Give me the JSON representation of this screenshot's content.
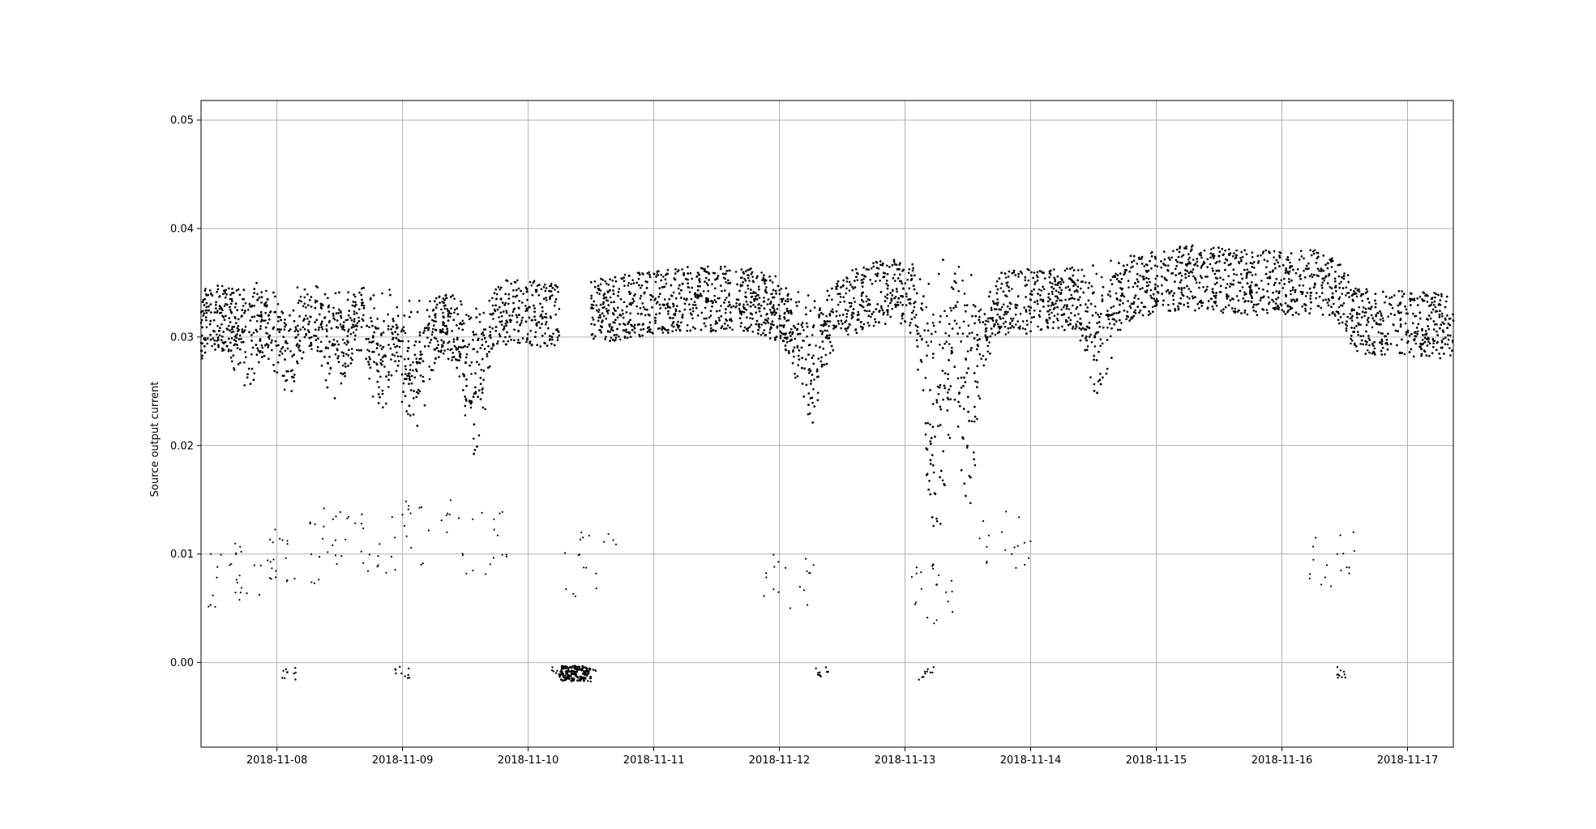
{
  "chart_data": {
    "type": "scatter",
    "title": "",
    "xlabel": "",
    "ylabel": "Source output current",
    "x_axis": {
      "kind": "date",
      "range": [
        "2018-11-07T09:30",
        "2018-11-17T08:45"
      ],
      "tick_labels": [
        "2018-11-08",
        "2018-11-09",
        "2018-11-10",
        "2018-11-11",
        "2018-11-12",
        "2018-11-13",
        "2018-11-14",
        "2018-11-15",
        "2018-11-16",
        "2018-11-17"
      ]
    },
    "y_axis": {
      "range": [
        -0.0078,
        0.0518
      ],
      "ticks": [
        0.0,
        0.01,
        0.02,
        0.03,
        0.04,
        0.05
      ],
      "tick_labels": [
        "0.00",
        "0.01",
        "0.02",
        "0.03",
        "0.04",
        "0.05"
      ]
    },
    "grid": true,
    "legend": "none",
    "marker_color": "#000000",
    "series": [
      {
        "description_points": "approximate envelope of the dense band (date, value)",
        "band": [
          [
            "2018-11-07T10:00",
            0.0315
          ],
          [
            "2018-11-07T18:00",
            0.0325
          ],
          [
            "2018-11-08T02:00",
            0.032
          ],
          [
            "2018-11-08T12:00",
            0.032
          ],
          [
            "2018-11-08T22:00",
            0.0315
          ],
          [
            "2018-11-09T12:00",
            0.031
          ],
          [
            "2018-11-09T18:00",
            0.0325
          ],
          [
            "2018-11-10T05:00",
            0.032
          ],
          [
            "2018-11-10T14:00",
            0.0325
          ],
          [
            "2018-11-11T06:00",
            0.0335
          ],
          [
            "2018-11-11T18:00",
            0.0335
          ],
          [
            "2018-11-12T06:00",
            0.0315
          ],
          [
            "2018-11-12T18:00",
            0.034
          ],
          [
            "2018-11-13T06:00",
            0.0345
          ],
          [
            "2018-11-13T16:00",
            0.033
          ],
          [
            "2018-11-14T06:00",
            0.0335
          ],
          [
            "2018-11-14T18:00",
            0.0345
          ],
          [
            "2018-11-15T06:00",
            0.0355
          ],
          [
            "2018-11-15T18:00",
            0.035
          ],
          [
            "2018-11-16T06:00",
            0.035
          ],
          [
            "2018-11-16T10:00",
            0.035
          ],
          [
            "2018-11-16T14:00",
            0.0315
          ],
          [
            "2018-11-17T08:00",
            0.031
          ]
        ],
        "dips": [
          [
            "2018-11-07T18:00",
            0.0275
          ],
          [
            "2018-11-08T02:00",
            0.026
          ],
          [
            "2018-11-08T11:00",
            0.0265
          ],
          [
            "2018-11-08T20:00",
            0.0255
          ],
          [
            "2018-11-09T02:00",
            0.023
          ],
          [
            "2018-11-09T14:00",
            0.0215
          ],
          [
            "2018-11-12T06:00",
            0.0245
          ],
          [
            "2018-11-13T06:00",
            0.009
          ],
          [
            "2018-11-13T12:00",
            0.017
          ],
          [
            "2018-11-14T13:00",
            0.0265
          ]
        ],
        "scattered_low": [
          [
            "2018-11-07T12:00",
            0.008
          ],
          [
            "2018-11-07T20:00",
            0.009
          ],
          [
            "2018-11-08T03:00",
            0.01
          ],
          [
            "2018-11-08T10:00",
            0.0115
          ],
          [
            "2018-11-08T19:00",
            0.011
          ],
          [
            "2018-11-09T05:00",
            0.012
          ],
          [
            "2018-11-09T15:00",
            0.011
          ],
          [
            "2018-11-10T12:00",
            0.009
          ],
          [
            "2018-11-12T02:00",
            0.007
          ],
          [
            "2018-11-13T06:00",
            0.006
          ],
          [
            "2018-11-13T19:00",
            0.011
          ],
          [
            "2018-11-16T10:00",
            0.01
          ]
        ],
        "near_zero": [
          [
            "2018-11-08T02:30",
            -0.001
          ],
          [
            "2018-11-09T00:00",
            -0.001
          ],
          [
            "2018-11-10T06:00",
            -0.001
          ],
          [
            "2018-11-10T12:00",
            -0.0012
          ],
          [
            "2018-11-12T08:00",
            -0.0008
          ],
          [
            "2018-11-13T04:00",
            -0.001
          ],
          [
            "2018-11-16T12:00",
            -0.001
          ]
        ],
        "gap": [
          "2018-11-10T06:00",
          "2018-11-10T12:00"
        ]
      }
    ]
  }
}
